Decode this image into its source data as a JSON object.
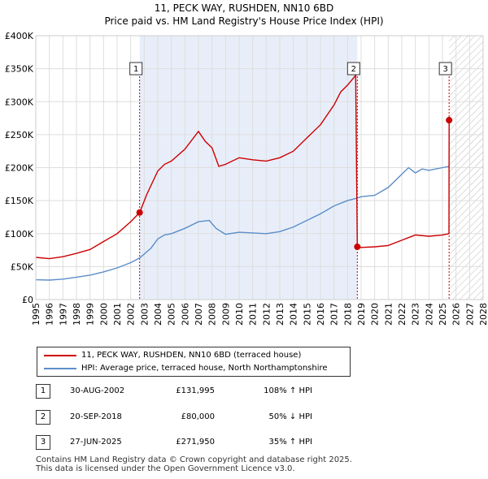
{
  "title_line1": "11, PECK WAY, RUSHDEN, NN10 6BD",
  "title_line2": "Price paid vs. HM Land Registry's House Price Index (HPI)",
  "colors": {
    "price": "#cc0000",
    "hpi": "#5b8ec9",
    "shade": "#e8eef9",
    "marker_line": "#cc0000"
  },
  "chart_data": {
    "type": "line",
    "xlim": [
      1995,
      2028
    ],
    "ylim": [
      0,
      400000
    ],
    "y_ticks": [
      {
        "value": 0,
        "label": "£0"
      },
      {
        "value": 50000,
        "label": "£50K"
      },
      {
        "value": 100000,
        "label": "£100K"
      },
      {
        "value": 150000,
        "label": "£150K"
      },
      {
        "value": 200000,
        "label": "£200K"
      },
      {
        "value": 250000,
        "label": "£250K"
      },
      {
        "value": 300000,
        "label": "£300K"
      },
      {
        "value": 350000,
        "label": "£350K"
      },
      {
        "value": 400000,
        "label": "£400K"
      }
    ],
    "x_ticks": [
      "1995",
      "1996",
      "1997",
      "1998",
      "1999",
      "2000",
      "2001",
      "2002",
      "2003",
      "2004",
      "2005",
      "2006",
      "2007",
      "2008",
      "2009",
      "2010",
      "2011",
      "2012",
      "2013",
      "2014",
      "2015",
      "2016",
      "2017",
      "2018",
      "2019",
      "2020",
      "2021",
      "2022",
      "2023",
      "2024",
      "2025",
      "2026",
      "2027",
      "2028"
    ],
    "shaded_range": [
      2002.66,
      2018.72
    ],
    "hatched_from": 2025.49,
    "series": [
      {
        "name": "11, PECK WAY, RUSHDEN, NN10 6BD (terraced house)",
        "points": [
          [
            1995,
            64000
          ],
          [
            1996,
            62000
          ],
          [
            1997,
            65000
          ],
          [
            1998,
            70000
          ],
          [
            1999,
            76000
          ],
          [
            2000,
            88000
          ],
          [
            2001,
            100000
          ],
          [
            2002,
            118000
          ],
          [
            2002.66,
            131995
          ],
          [
            2003.2,
            160000
          ],
          [
            2004,
            195000
          ],
          [
            2004.5,
            205000
          ],
          [
            2005,
            210000
          ],
          [
            2006,
            228000
          ],
          [
            2007,
            255000
          ],
          [
            2007.5,
            240000
          ],
          [
            2008,
            230000
          ],
          [
            2008.5,
            202000
          ],
          [
            2009,
            205000
          ],
          [
            2010,
            215000
          ],
          [
            2011,
            212000
          ],
          [
            2012,
            210000
          ],
          [
            2013,
            215000
          ],
          [
            2014,
            225000
          ],
          [
            2015,
            245000
          ],
          [
            2016,
            265000
          ],
          [
            2017,
            295000
          ],
          [
            2017.5,
            315000
          ],
          [
            2018,
            325000
          ],
          [
            2018.6,
            340000
          ],
          [
            2018.72,
            80000
          ],
          [
            2019,
            79000
          ],
          [
            2020,
            80000
          ],
          [
            2021,
            82000
          ],
          [
            2022,
            90000
          ],
          [
            2023,
            98000
          ],
          [
            2024,
            96000
          ],
          [
            2025,
            98000
          ],
          [
            2025.48,
            100000
          ],
          [
            2025.49,
            271950
          ]
        ]
      },
      {
        "name": "HPI: Average price, terraced house, North Northamptonshire",
        "points": [
          [
            1995,
            30000
          ],
          [
            1996,
            29500
          ],
          [
            1997,
            31000
          ],
          [
            1998,
            34000
          ],
          [
            1999,
            37000
          ],
          [
            2000,
            42000
          ],
          [
            2001,
            48000
          ],
          [
            2002,
            56000
          ],
          [
            2002.66,
            63000
          ],
          [
            2003.5,
            78000
          ],
          [
            2004,
            92000
          ],
          [
            2004.5,
            98000
          ],
          [
            2005,
            100000
          ],
          [
            2006,
            108000
          ],
          [
            2007,
            118000
          ],
          [
            2007.8,
            120000
          ],
          [
            2008.3,
            108000
          ],
          [
            2009,
            99000
          ],
          [
            2010,
            102000
          ],
          [
            2011,
            101000
          ],
          [
            2012,
            100000
          ],
          [
            2013,
            103000
          ],
          [
            2014,
            110000
          ],
          [
            2015,
            120000
          ],
          [
            2016,
            130000
          ],
          [
            2017,
            142000
          ],
          [
            2018,
            150000
          ],
          [
            2018.72,
            154000
          ],
          [
            2019,
            156000
          ],
          [
            2020,
            158000
          ],
          [
            2021,
            170000
          ],
          [
            2022,
            190000
          ],
          [
            2022.5,
            200000
          ],
          [
            2023,
            192000
          ],
          [
            2023.5,
            198000
          ],
          [
            2024,
            196000
          ],
          [
            2025,
            200000
          ],
          [
            2025.5,
            202000
          ]
        ]
      }
    ],
    "sales": [
      {
        "num": "1",
        "x": 2002.66,
        "y": 131995
      },
      {
        "num": "2",
        "x": 2018.72,
        "y": 80000
      },
      {
        "num": "3",
        "x": 2025.49,
        "y": 271950
      }
    ]
  },
  "legend": {
    "price_label": "11, PECK WAY, RUSHDEN, NN10 6BD (terraced house)",
    "hpi_label": "HPI: Average price, terraced house, North Northamptonshire"
  },
  "sales_table": [
    {
      "num": "1",
      "date": "30-AUG-2002",
      "price": "£131,995",
      "hpi": "108% ↑ HPI"
    },
    {
      "num": "2",
      "date": "20-SEP-2018",
      "price": "£80,000",
      "hpi": "50% ↓ HPI"
    },
    {
      "num": "3",
      "date": "27-JUN-2025",
      "price": "£271,950",
      "hpi": "35% ↑ HPI"
    }
  ],
  "footer": {
    "line1": "Contains HM Land Registry data © Crown copyright and database right 2025.",
    "line2": "This data is licensed under the Open Government Licence v3.0."
  }
}
